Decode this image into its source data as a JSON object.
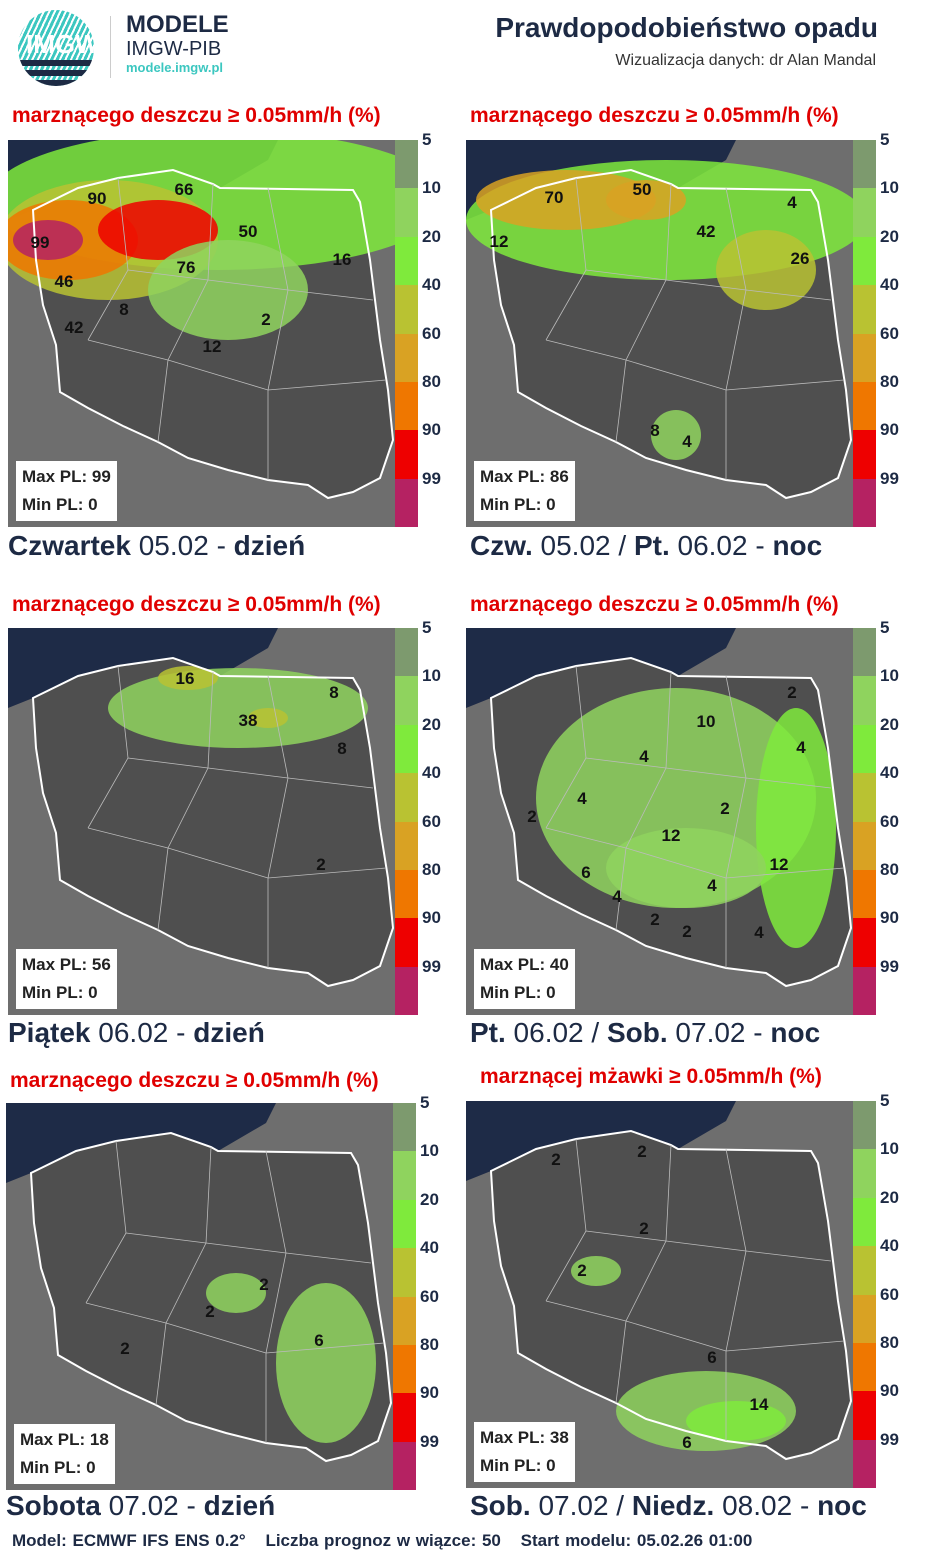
{
  "header": {
    "logo_text": "IMGW",
    "brand_line1": "MODELE",
    "brand_line2": "IMGW-PIB",
    "brand_url": "modele.imgw.pl",
    "title": "Prawdopodobieństwo opadu",
    "subtitle": "Wizualizacja danych: dr Alan Mandal"
  },
  "legend": {
    "labels": [
      "5",
      "10",
      "20",
      "40",
      "60",
      "80",
      "90",
      "99"
    ],
    "colors": [
      "#7d9a6e",
      "#8fd35e",
      "#7fea3c",
      "#b9c232",
      "#d9a223",
      "#ef7700",
      "#ee0000",
      "#b52262"
    ]
  },
  "panels": [
    {
      "title": "marznącego deszczu ≥ 0.05mm/h (%)",
      "max": "Max PL: 99",
      "min": "Min PL: 0",
      "day_a": "Czwartek",
      "date_a": " 05.02 - ",
      "day_b": "",
      "date_b": "",
      "part": "dzień",
      "values": [
        "90",
        "66",
        "99",
        "50",
        "76",
        "16",
        "46",
        "8",
        "42",
        "2",
        "12"
      ]
    },
    {
      "title": "marznącego deszczu ≥ 0.05mm/h (%)",
      "max": "Max PL: 86",
      "min": "Min PL: 0",
      "day_a": "Czw.",
      "date_a": " 05.02 / ",
      "day_b": "Pt.",
      "date_b": " 06.02 - ",
      "part": "noc",
      "values": [
        "70",
        "50",
        "4",
        "12",
        "42",
        "26",
        "8",
        "4"
      ]
    },
    {
      "title": "marznącego deszczu ≥ 0.05mm/h (%)",
      "max": "Max PL: 56",
      "min": "Min PL: 0",
      "day_a": "Piątek",
      "date_a": " 06.02 - ",
      "day_b": "",
      "date_b": "",
      "part": "dzień",
      "values": [
        "16",
        "8",
        "38",
        "8",
        "2"
      ]
    },
    {
      "title": "marznącego deszczu ≥ 0.05mm/h (%)",
      "max": "Max PL: 40",
      "min": "Min PL: 0",
      "day_a": "Pt.",
      "date_a": " 06.02 / ",
      "day_b": "Sob.",
      "date_b": " 07.02 - ",
      "part": "noc",
      "values": [
        "2",
        "10",
        "4",
        "4",
        "4",
        "2",
        "2",
        "12",
        "6",
        "12",
        "4",
        "4",
        "2",
        "2",
        "4"
      ]
    },
    {
      "title": "marznącego deszczu ≥ 0.05mm/h (%)",
      "max": "Max PL: 18",
      "min": "Min PL: 0",
      "day_a": "Sobota",
      "date_a": " 07.02 - ",
      "day_b": "",
      "date_b": "",
      "part": "dzień",
      "values": [
        "2",
        "2",
        "6",
        "2"
      ]
    },
    {
      "title": "marznącej mżawki ≥ 0.05mm/h (%)",
      "max": "Max PL: 38",
      "min": "Min PL: 0",
      "day_a": "Sob.",
      "date_a": " 07.02 / ",
      "day_b": "Niedz.",
      "date_b": " 08.02 - ",
      "part": "noc",
      "values": [
        "2",
        "2",
        "2",
        "2",
        "6",
        "14",
        "6"
      ]
    }
  ],
  "footer": {
    "model": "Model: ECMWF IFS ENS 0.2°",
    "members": "Liczba prognoz w wiązce: 50",
    "start": "Start modelu: 05.02.26  01:00"
  }
}
